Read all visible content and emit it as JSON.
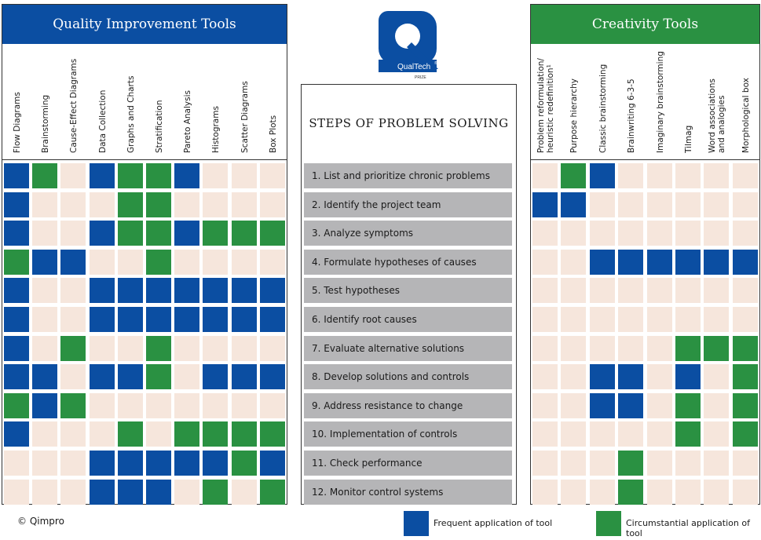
{
  "colors": {
    "frequent": "#0b4ea2",
    "circumstantial": "#2a9142",
    "empty": "#f6e6dc",
    "step_bg": "#b5b5b7"
  },
  "logo": {
    "name": "QualTech",
    "reg": "®",
    "sub": "PRIZE"
  },
  "quality_tools": {
    "title": "Quality Improvement Tools",
    "columns": [
      "Flow Diagrams",
      "Brainstorming",
      "Cause-Effect Diagrams",
      "Data Collection",
      "Graphs and Charts",
      "Stratification",
      "Pareto Analysis",
      "Histograms",
      "Scatter Diagrams",
      "Box Plots"
    ],
    "matrix": [
      [
        "F",
        "C",
        "",
        "F",
        "C",
        "C",
        "F",
        "",
        "",
        ""
      ],
      [
        "F",
        "",
        "",
        "",
        "C",
        "C",
        "",
        "",
        "",
        ""
      ],
      [
        "F",
        "",
        "",
        "F",
        "C",
        "C",
        "F",
        "C",
        "C",
        "C"
      ],
      [
        "C",
        "F",
        "F",
        "",
        "",
        "C",
        "",
        "",
        "",
        ""
      ],
      [
        "F",
        "",
        "",
        "F",
        "F",
        "F",
        "F",
        "F",
        "F",
        "F"
      ],
      [
        "F",
        "",
        "",
        "F",
        "F",
        "F",
        "F",
        "F",
        "F",
        "F"
      ],
      [
        "F",
        "",
        "C",
        "",
        "",
        "C",
        "",
        "",
        "",
        ""
      ],
      [
        "F",
        "F",
        "",
        "F",
        "F",
        "C",
        "",
        "F",
        "F",
        "F"
      ],
      [
        "C",
        "F",
        "C",
        "",
        "",
        "",
        "",
        "",
        "",
        ""
      ],
      [
        "F",
        "",
        "",
        "",
        "C",
        "",
        "C",
        "C",
        "C",
        "C"
      ],
      [
        "",
        "",
        "",
        "F",
        "F",
        "F",
        "F",
        "F",
        "C",
        "F"
      ],
      [
        "",
        "",
        "",
        "F",
        "F",
        "F",
        "",
        "C",
        "",
        "C"
      ]
    ]
  },
  "steps": {
    "title": "STEPS OF PROBLEM SOLVING",
    "items": [
      "1.  List and prioritize chronic problems",
      "2.  Identify the project team",
      "3.  Analyze symptoms",
      "4.  Formulate hypotheses of causes",
      "5.  Test hypotheses",
      "6.  Identify root causes",
      "7.  Evaluate alternative solutions",
      "8.  Develop solutions and controls",
      "9.  Address resistance to change",
      "10. Implementation of controls",
      "11. Check performance",
      "12. Monitor control systems"
    ]
  },
  "creativity_tools": {
    "title": "Creativity Tools",
    "columns": [
      "Problem reformulation/\nheuristic redefinition¹",
      "Purpose hierarchy",
      "Classic brainstorming",
      "Brainwriting 6-3-5",
      "Imaginary brainstorming",
      "Tilmag",
      "Word associations\nand analogies",
      "Morphological box"
    ],
    "matrix": [
      [
        "",
        "C",
        "F",
        "",
        "",
        "",
        "",
        ""
      ],
      [
        "F",
        "F",
        "",
        "",
        "",
        "",
        "",
        ""
      ],
      [
        "",
        "",
        "",
        "",
        "",
        "",
        "",
        ""
      ],
      [
        "",
        "",
        "F",
        "F",
        "F",
        "F",
        "F",
        "F"
      ],
      [
        "",
        "",
        "",
        "",
        "",
        "",
        "",
        ""
      ],
      [
        "",
        "",
        "",
        "",
        "",
        "",
        "",
        ""
      ],
      [
        "",
        "",
        "",
        "",
        "",
        "C",
        "C",
        "C"
      ],
      [
        "",
        "",
        "F",
        "F",
        "",
        "F",
        "",
        "C"
      ],
      [
        "",
        "",
        "F",
        "F",
        "",
        "C",
        "",
        "C"
      ],
      [
        "",
        "",
        "",
        "",
        "",
        "C",
        "",
        "C"
      ],
      [
        "",
        "",
        "",
        "C",
        "",
        "",
        "",
        ""
      ],
      [
        "",
        "",
        "",
        "C",
        "",
        "",
        "",
        ""
      ]
    ]
  },
  "footer": {
    "copyright": "© Qimpro",
    "legend_frequent": "Frequent application of tool",
    "legend_circumstantial": "Circumstantial application of tool"
  }
}
